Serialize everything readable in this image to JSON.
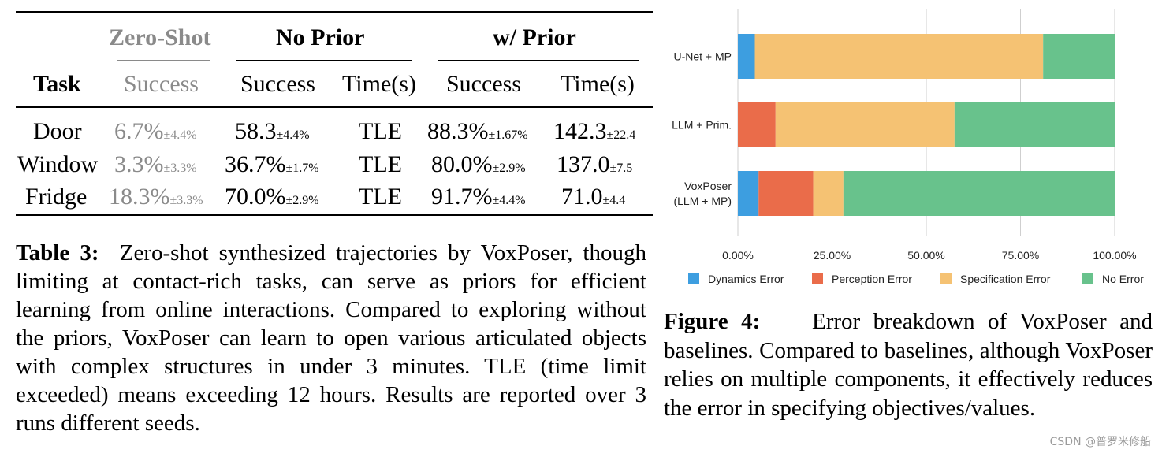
{
  "table": {
    "groups": {
      "zero_shot": "Zero-Shot",
      "no_prior": "No Prior",
      "w_prior": "w/ Prior"
    },
    "subheaders": {
      "task": "Task",
      "success_zs": "Success",
      "success_np": "Success",
      "time_np": "Time(s)",
      "success_wp": "Success",
      "time_wp": "Time(s)"
    },
    "rows": [
      {
        "task": "Door",
        "zs": "6.7%",
        "zs_pm": "±4.4%",
        "np": "58.3",
        "np_pm": "±4.4%",
        "np_time": "TLE",
        "wp": "88.3%",
        "wp_pm": "±1.67%",
        "wp_time": "142.3",
        "wp_time_pm": "±22.4"
      },
      {
        "task": "Window",
        "zs": "3.3%",
        "zs_pm": "±3.3%",
        "np": "36.7%",
        "np_pm": "±1.7%",
        "np_time": "TLE",
        "wp": "80.0%",
        "wp_pm": "±2.9%",
        "wp_time": "137.0",
        "wp_time_pm": "±7.5"
      },
      {
        "task": "Fridge",
        "zs": "18.3%",
        "zs_pm": "±3.3%",
        "np": "70.0%",
        "np_pm": "±2.9%",
        "np_time": "TLE",
        "wp": "91.7%",
        "wp_pm": "±4.4%",
        "wp_time": "71.0",
        "wp_time_pm": "±4.4"
      }
    ],
    "caption_label": "Table 3:",
    "caption_text": "Zero-shot synthesized trajectories by VoxPoser, though limiting at contact-rich tasks, can serve as priors for efficient learning from online interactions. Compared to exploring without the priors, VoxPoser can learn to open various articulated objects with complex structures in under 3 minutes. TLE (time limit exceeded) means exceeding 12 hours. Results are reported over 3 runs different seeds."
  },
  "chart_data": {
    "type": "bar",
    "orientation": "horizontal",
    "stacked": true,
    "categories": [
      "U-Net + MP",
      "LLM + Prim.",
      "VoxPoser\n(LLM + MP)"
    ],
    "category_lines": [
      [
        "U-Net + MP"
      ],
      [
        "LLM + Prim."
      ],
      [
        "VoxPoser",
        "(LLM + MP)"
      ]
    ],
    "series": [
      {
        "name": "Dynamics Error",
        "color": "#3d9ee0",
        "values": [
          4.5,
          0,
          5.5
        ]
      },
      {
        "name": "Perception Error",
        "color": "#ea6c4a",
        "values": [
          0,
          10,
          14.5
        ]
      },
      {
        "name": "Specification Error",
        "color": "#f5c273",
        "values": [
          76.5,
          47.5,
          8
        ]
      },
      {
        "name": "No Error",
        "color": "#68c28c",
        "values": [
          19,
          42.5,
          72
        ]
      }
    ],
    "xlim": [
      0,
      100
    ],
    "xticks": [
      "0.00%",
      "25.00%",
      "50.00%",
      "75.00%",
      "100.00%"
    ],
    "grid": true,
    "legend_position": "bottom"
  },
  "figure": {
    "caption_label": "Figure 4:",
    "caption_text": "Error breakdown of VoxPoser and baselines. Compared to baselines, although VoxPoser relies on multiple components, it effectively reduces the error in specifying objectives/values."
  },
  "watermark": "CSDN @普罗米修船"
}
